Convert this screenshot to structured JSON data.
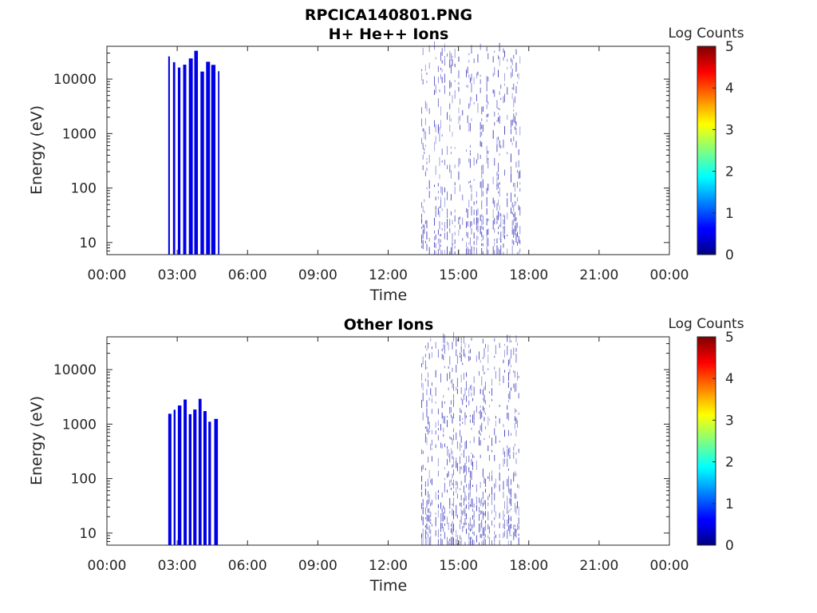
{
  "figure": {
    "title_line1": "RPCICA140801.PNG"
  },
  "colorbar": {
    "label": "Log Counts",
    "ticks": [
      "0",
      "1",
      "2",
      "3",
      "4",
      "5"
    ],
    "colormap": "jet",
    "range": [
      0,
      5
    ]
  },
  "chart_data": [
    {
      "type": "heatmap",
      "title": "H+ He++ Ions",
      "xlabel": "Time",
      "ylabel": "Energy (eV)",
      "x_ticks": [
        "00:00",
        "03:00",
        "06:00",
        "09:00",
        "12:00",
        "15:00",
        "18:00",
        "21:00",
        "00:00"
      ],
      "x_range_hours": [
        0,
        24
      ],
      "y_scale": "log",
      "y_ticks": [
        "10",
        "100",
        "1000",
        "10000"
      ],
      "y_range": [
        6,
        40000
      ],
      "intervals": [
        {
          "start": "02:37",
          "end": "04:48",
          "energy_max_eV": 35000,
          "log_counts": 0.5,
          "density": "dense"
        },
        {
          "start": "13:25",
          "end": "17:48",
          "energy_max_eV": 35000,
          "log_counts": 0.2,
          "density": "sparse"
        }
      ]
    },
    {
      "type": "heatmap",
      "title": "Other Ions",
      "xlabel": "Time",
      "ylabel": "Energy (eV)",
      "x_ticks": [
        "00:00",
        "03:00",
        "06:00",
        "09:00",
        "12:00",
        "15:00",
        "18:00",
        "21:00",
        "00:00"
      ],
      "x_range_hours": [
        0,
        24
      ],
      "y_scale": "log",
      "y_ticks": [
        "10",
        "100",
        "1000",
        "10000"
      ],
      "y_range": [
        6,
        40000
      ],
      "intervals": [
        {
          "start": "02:37",
          "end": "04:48",
          "energy_max_eV": 3000,
          "log_counts": 0.5,
          "density": "dense"
        },
        {
          "start": "13:25",
          "end": "17:48",
          "energy_max_eV": 35000,
          "log_counts": 0.2,
          "density": "sparse"
        }
      ]
    }
  ]
}
